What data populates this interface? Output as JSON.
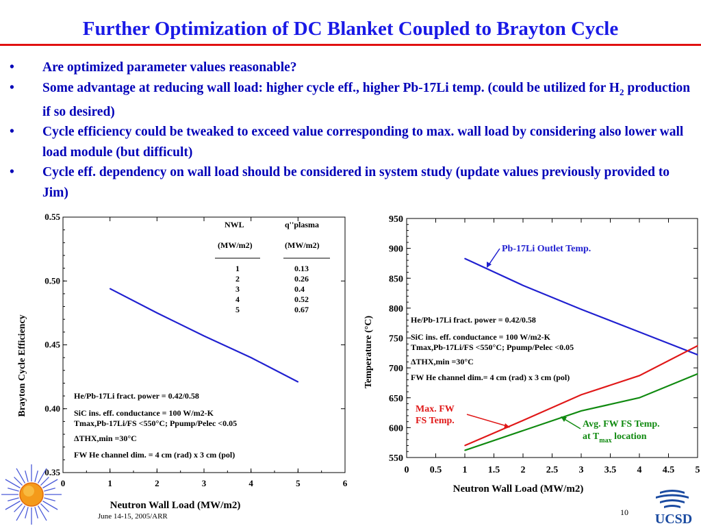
{
  "slide": {
    "title": "Further Optimization of DC Blanket Coupled to Brayton Cycle",
    "bullets": [
      {
        "pre": "Are optimized parameter values reasonable?",
        "sub": "",
        "post": ""
      },
      {
        "pre": "Some advantage at reducing wall load: higher cycle eff., higher Pb-17Li temp. (could be utilized for H",
        "sub": "2",
        "post": " production if so desired)"
      },
      {
        "pre": "Cycle efficiency could be tweaked to exceed value corresponding to max. wall load by considering also lower wall load module (but difficult)",
        "sub": "",
        "post": ""
      },
      {
        "pre": "Cycle eff. dependency on wall load should be considered in system study (update values previously provided to Jim)",
        "sub": "",
        "post": ""
      }
    ],
    "bullet_symbol": "•",
    "footer_date": "June 14-15, 2005/ARR",
    "page_number": "10",
    "logo_text": "UCSD",
    "colors": {
      "title": "#1a1ae6",
      "rule": "#e01010",
      "bullets": "#0000b8"
    }
  },
  "chart_data": [
    {
      "type": "line",
      "xlabel": "Neutron Wall Load (MW/m2)",
      "ylabel": "Brayton Cycle Efficiency",
      "xlim": [
        0,
        6
      ],
      "ylim": [
        0.35,
        0.55
      ],
      "xticks": [
        "0",
        "1",
        "2",
        "3",
        "4",
        "5",
        "6"
      ],
      "yticks": [
        "0.35",
        "0.40",
        "0.45",
        "0.50",
        "0.55"
      ],
      "grid": false,
      "series": [
        {
          "color": "#2020d0",
          "x": [
            1,
            2,
            3,
            4,
            5
          ],
          "y": [
            0.494,
            0.475,
            0.457,
            0.44,
            0.421
          ]
        }
      ],
      "table": {
        "headers": [
          "NWL",
          "q''plasma"
        ],
        "units": [
          "(MW/m2)",
          "(MW/m2)"
        ],
        "rows": [
          [
            "1",
            "0.13"
          ],
          [
            "2",
            "0.26"
          ],
          [
            "3",
            "0.4"
          ],
          [
            "4",
            "0.52"
          ],
          [
            "5",
            "0.67"
          ]
        ]
      },
      "annotations": [
        "He/Pb-17Li fract. power = 0.42/0.58",
        "SiC ins. eff. conductance = 100 W/m2-K",
        "Tmax,Pb-17Li/FS <550°C; Ppump/Pelec <0.05",
        "ΔTHX,min =30°C",
        "FW He channel dim. = 4 cm (rad) x 3 cm (pol)"
      ]
    },
    {
      "type": "line",
      "xlabel": "Neutron Wall Load (MW/m2)",
      "ylabel": "Temperature (°C)",
      "xlim": [
        0,
        5
      ],
      "ylim": [
        550,
        950
      ],
      "xticks": [
        "0",
        "0.5",
        "1",
        "1.5",
        "2",
        "2.5",
        "3",
        "3.5",
        "4",
        "4.5",
        "5"
      ],
      "yticks": [
        "550",
        "600",
        "650",
        "700",
        "750",
        "800",
        "850",
        "900",
        "950"
      ],
      "grid": false,
      "series": [
        {
          "name": "Pb-17Li Outlet Temp.",
          "color": "#2020d0",
          "x": [
            1,
            2,
            3,
            4,
            5
          ],
          "y": [
            883,
            838,
            798,
            760,
            722
          ]
        },
        {
          "name": "Max. FW FS Temp.",
          "color": "#e01818",
          "x": [
            1,
            2,
            3,
            4,
            5
          ],
          "y": [
            570,
            612,
            655,
            687,
            737
          ]
        },
        {
          "name": "Avg. FW FS Temp. at Tmax location",
          "color": "#108a10",
          "x": [
            1,
            2,
            3,
            4,
            5
          ],
          "y": [
            562,
            595,
            628,
            650,
            690
          ]
        }
      ],
      "annotations": [
        "He/Pb-17Li fract. power = 0.42/0.58",
        "SiC ins. eff. conductance = 100 W/m2-K",
        "Tmax,Pb-17Li/FS <550°C; Ppump/Pelec <0.05",
        "ΔTHX,min =30°C",
        "FW He channel dim.= 4 cm (rad) x 3 cm (pol)"
      ],
      "labels": {
        "pb_outlet": "Pb-17Li Outlet Temp.",
        "max_fw_1": "Max. FW",
        "max_fw_2": "FS Temp.",
        "avg_fw_1": "Avg. FW FS Temp.",
        "avg_fw_2": "at T",
        "avg_fw_sub": "max",
        "avg_fw_3": " location"
      }
    }
  ]
}
